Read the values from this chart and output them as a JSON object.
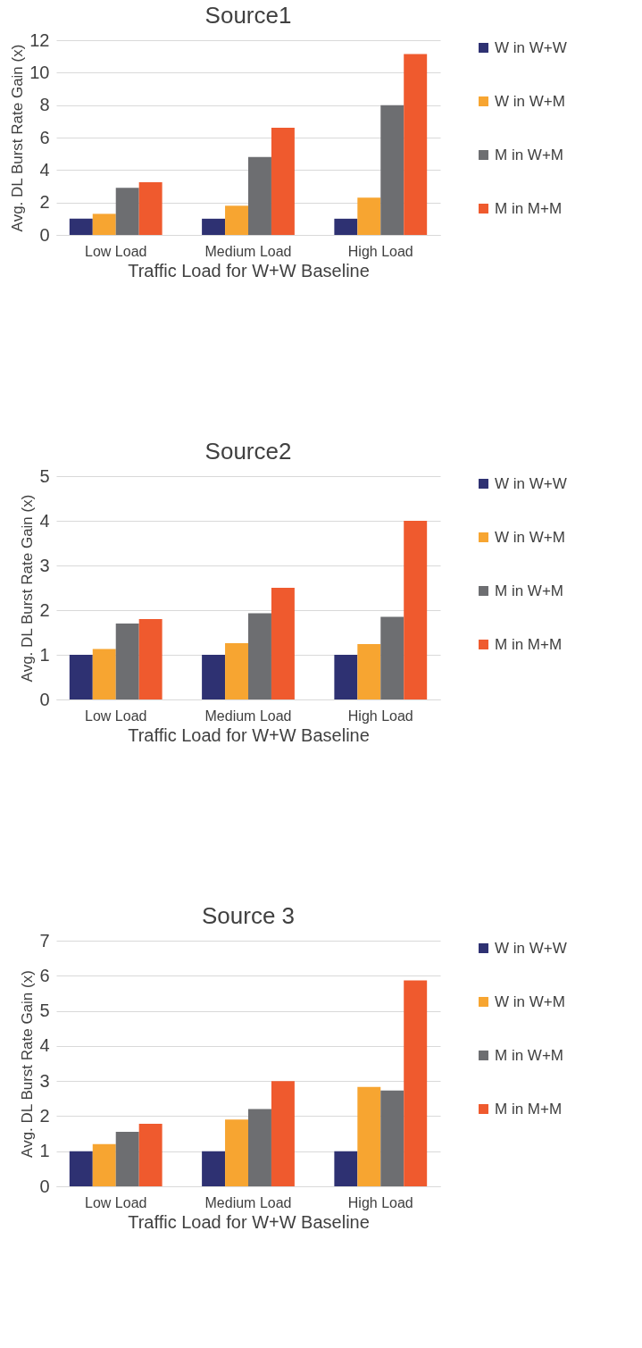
{
  "chart_data": [
    {
      "type": "bar",
      "title": "Source1",
      "xlabel": "Traffic Load for W+W Baseline",
      "ylabel": "Avg. DL Burst Rate Gain (x)",
      "categories": [
        "Low Load",
        "Medium Load",
        "High Load"
      ],
      "ylim": [
        0,
        12
      ],
      "yticks": [
        0,
        2,
        4,
        6,
        8,
        10,
        12
      ],
      "grid": "y",
      "legend": "right",
      "series": [
        {
          "name": "W in W+W",
          "color": "#2e3172",
          "values": [
            1,
            1,
            1
          ]
        },
        {
          "name": "W in W+M",
          "color": "#f7a531",
          "values": [
            1.3,
            1.8,
            2.3
          ]
        },
        {
          "name": "M in W+M",
          "color": "#6d6e71",
          "values": [
            2.9,
            4.8,
            8.0
          ]
        },
        {
          "name": "M in M+M",
          "color": "#ef5a2e",
          "values": [
            3.25,
            6.6,
            11.15
          ]
        }
      ]
    },
    {
      "type": "bar",
      "title": "Source2",
      "xlabel": "Traffic Load for W+W Baseline",
      "ylabel": "Avg. DL Burst Rate Gain (x)",
      "categories": [
        "Low Load",
        "Medium Load",
        "High Load"
      ],
      "ylim": [
        0,
        5
      ],
      "yticks": [
        0,
        1,
        2,
        3,
        4,
        5
      ],
      "grid": "y",
      "legend": "right",
      "series": [
        {
          "name": "W in W+W",
          "color": "#2e3172",
          "values": [
            1,
            1,
            1
          ]
        },
        {
          "name": "W in W+M",
          "color": "#f7a531",
          "values": [
            1.13,
            1.26,
            1.24
          ]
        },
        {
          "name": "M in W+M",
          "color": "#6d6e71",
          "values": [
            1.7,
            1.93,
            1.85
          ]
        },
        {
          "name": "M in M+M",
          "color": "#ef5a2e",
          "values": [
            1.8,
            2.5,
            4.0
          ]
        }
      ]
    },
    {
      "type": "bar",
      "title": "Source 3",
      "xlabel": "Traffic Load for W+W Baseline",
      "ylabel": "Avg. DL Burst Rate Gain (x)",
      "categories": [
        "Low Load",
        "Medium Load",
        "High Load"
      ],
      "ylim": [
        0,
        7
      ],
      "yticks": [
        0,
        1,
        2,
        3,
        4,
        5,
        6,
        7
      ],
      "grid": "y",
      "legend": "right",
      "series": [
        {
          "name": "W in W+W",
          "color": "#2e3172",
          "values": [
            1,
            1,
            1
          ]
        },
        {
          "name": "W in W+M",
          "color": "#f7a531",
          "values": [
            1.2,
            1.9,
            2.83
          ]
        },
        {
          "name": "M in W+M",
          "color": "#6d6e71",
          "values": [
            1.55,
            2.2,
            2.73
          ]
        },
        {
          "name": "M in M+M",
          "color": "#ef5a2e",
          "values": [
            1.78,
            3.0,
            5.87
          ]
        }
      ]
    }
  ]
}
